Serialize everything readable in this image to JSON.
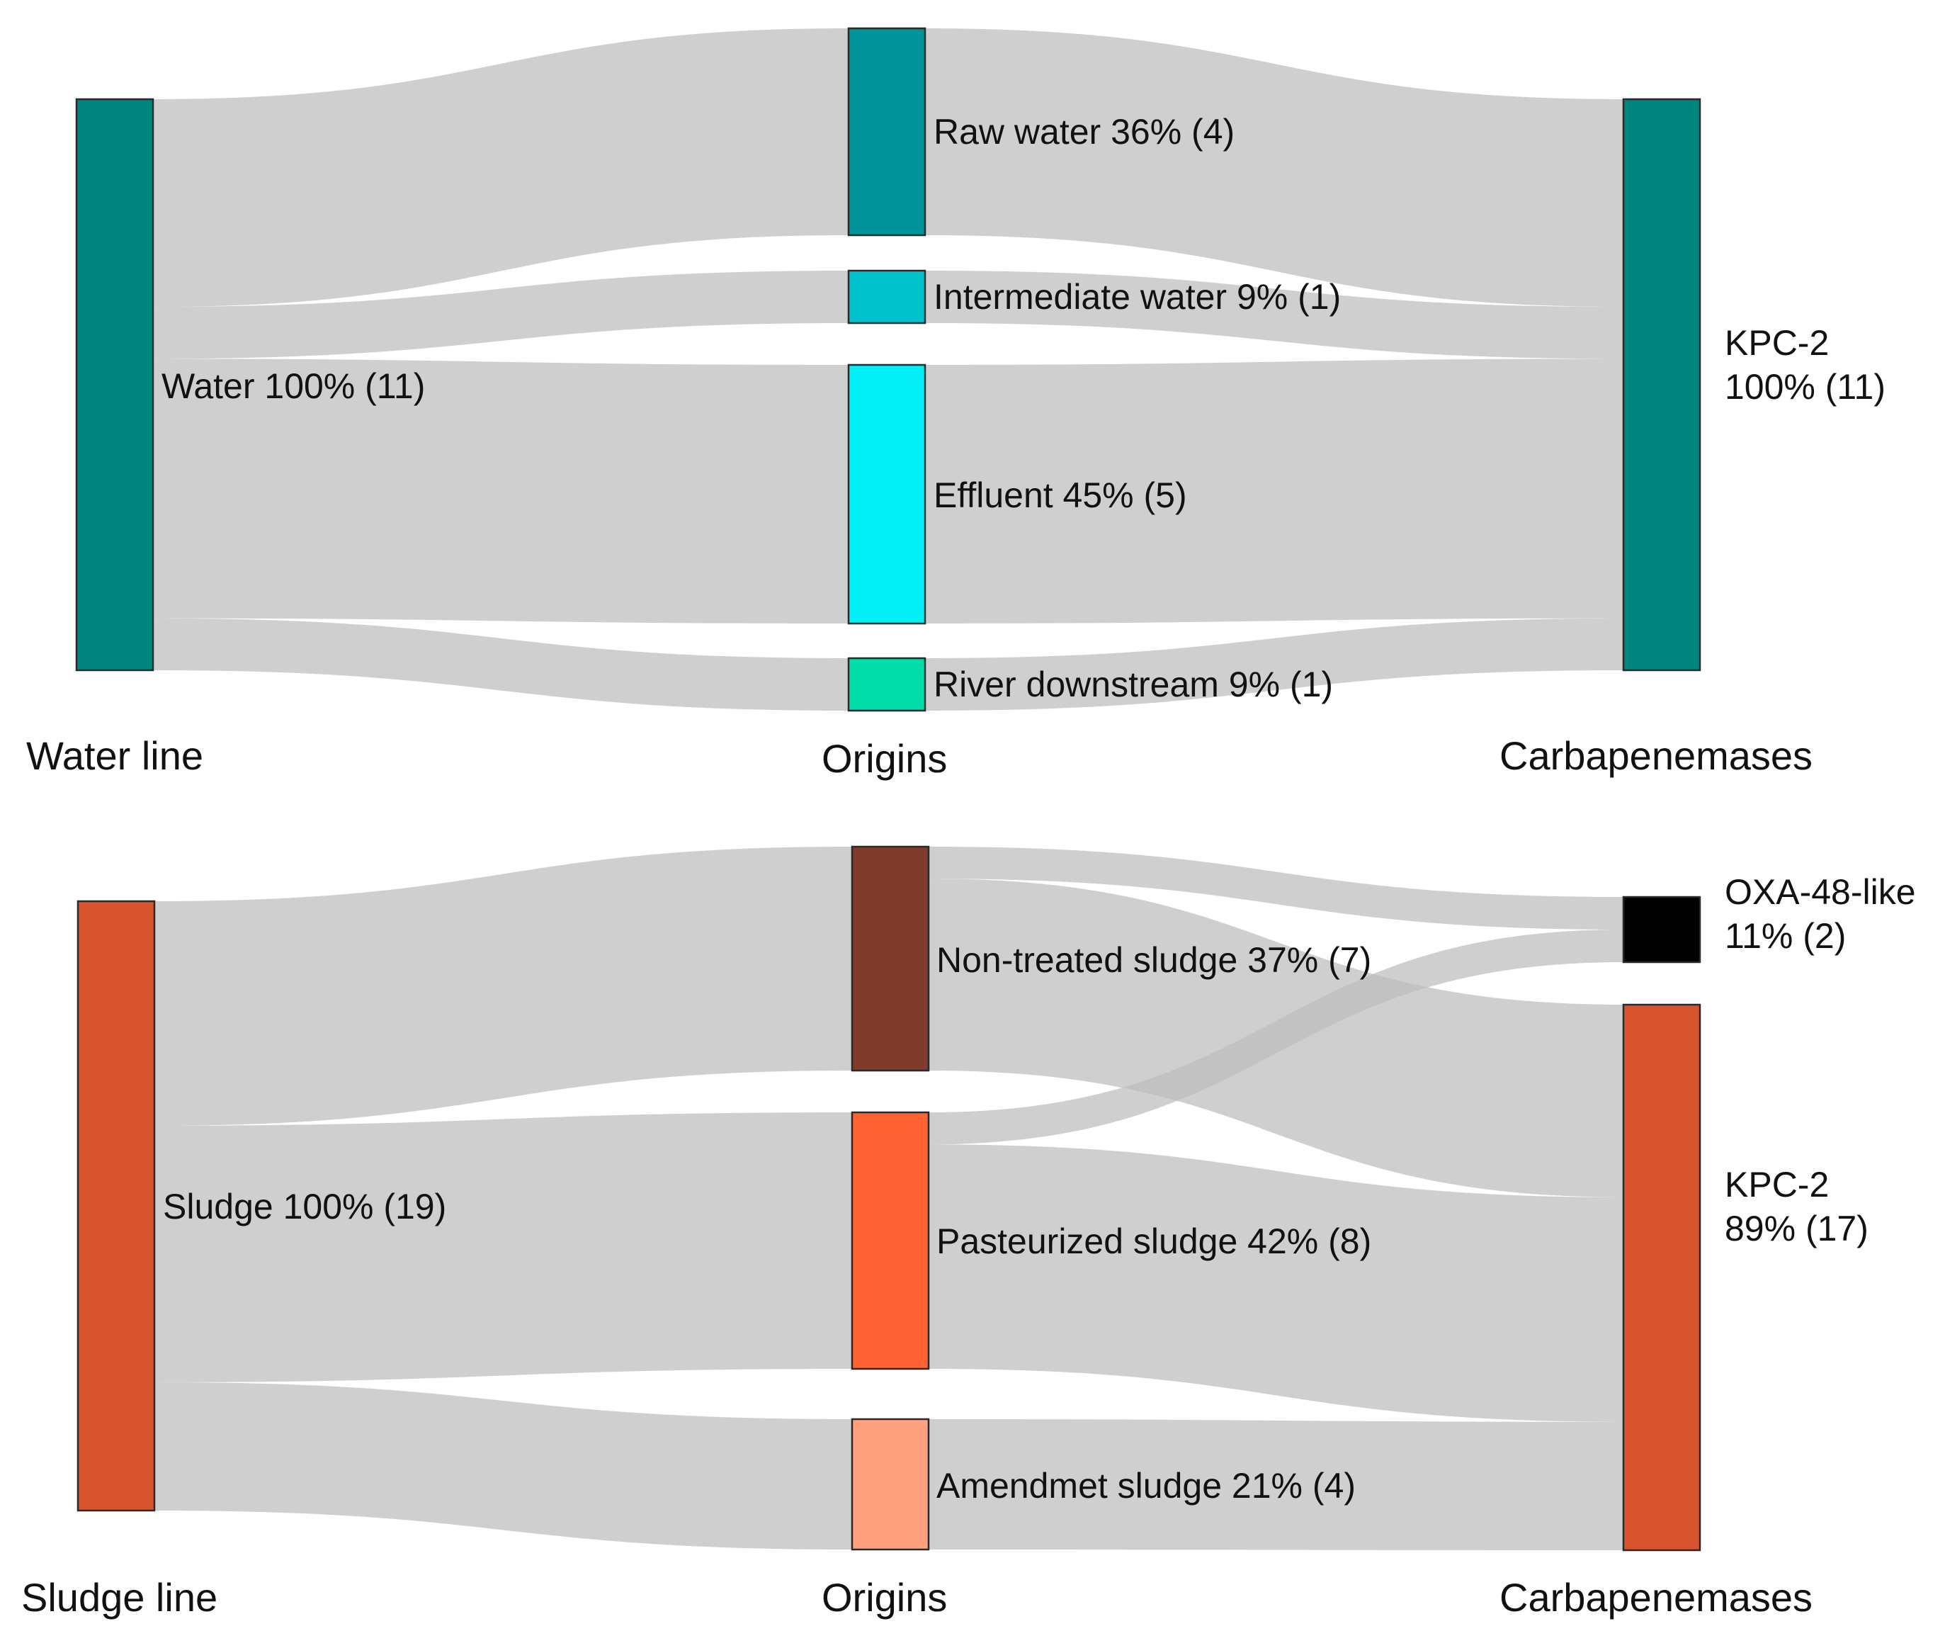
{
  "diagrams": [
    {
      "id": "water",
      "column_headers": [
        "Water line",
        "Origins",
        "Carbapenemases"
      ],
      "nodes": [
        {
          "id": "water_total",
          "lines": [
            "Water 100% (11)"
          ],
          "color": "#00847e",
          "count": 11
        },
        {
          "id": "raw_water",
          "lines": [
            "Raw water 36% (4)"
          ],
          "color": "#00939a",
          "count": 4
        },
        {
          "id": "intermediate_water",
          "lines": [
            "Intermediate water 9% (1)"
          ],
          "color": "#00c2ca",
          "count": 1
        },
        {
          "id": "effluent",
          "lines": [
            "Effluent 45% (5)"
          ],
          "color": "#00f0f6",
          "count": 5
        },
        {
          "id": "river_downstream",
          "lines": [
            "River downstream 9% (1)"
          ],
          "color": "#00dcaa",
          "count": 1
        },
        {
          "id": "kpc2_water",
          "lines": [
            "KPC-2",
            "100% (11)"
          ],
          "color": "#00847e",
          "count": 11
        }
      ],
      "links": [
        {
          "source": "water_total",
          "target": "raw_water",
          "value": 4
        },
        {
          "source": "water_total",
          "target": "intermediate_water",
          "value": 1
        },
        {
          "source": "water_total",
          "target": "effluent",
          "value": 5
        },
        {
          "source": "water_total",
          "target": "river_downstream",
          "value": 1
        },
        {
          "source": "raw_water",
          "target": "kpc2_water",
          "value": 4
        },
        {
          "source": "intermediate_water",
          "target": "kpc2_water",
          "value": 1
        },
        {
          "source": "effluent",
          "target": "kpc2_water",
          "value": 5
        },
        {
          "source": "river_downstream",
          "target": "kpc2_water",
          "value": 1
        }
      ]
    },
    {
      "id": "sludge",
      "column_headers": [
        "Sludge line",
        "Origins",
        "Carbapenemases"
      ],
      "nodes": [
        {
          "id": "sludge_total",
          "lines": [
            "Sludge 100% (19)"
          ],
          "color": "#d8542e",
          "count": 19
        },
        {
          "id": "non_treated_sludge",
          "lines": [
            "Non-treated sludge 37% (7)"
          ],
          "color": "#7f3b2c",
          "count": 7
        },
        {
          "id": "pasteurized_sludge",
          "lines": [
            "Pasteurized sludge 42% (8)"
          ],
          "color": "#ff6233",
          "count": 8
        },
        {
          "id": "amendmet_sludge",
          "lines": [
            "Amendmet sludge 21% (4)"
          ],
          "color": "#ffa07e",
          "count": 4
        },
        {
          "id": "oxa48",
          "lines": [
            "OXA-48-like",
            "11% (2)"
          ],
          "color": "#000000",
          "count": 2
        },
        {
          "id": "kpc2_sludge",
          "lines": [
            "KPC-2",
            "89% (17)"
          ],
          "color": "#d8542e",
          "count": 17
        }
      ],
      "links": [
        {
          "source": "sludge_total",
          "target": "non_treated_sludge",
          "value": 7
        },
        {
          "source": "sludge_total",
          "target": "pasteurized_sludge",
          "value": 8
        },
        {
          "source": "sludge_total",
          "target": "amendmet_sludge",
          "value": 4
        },
        {
          "source": "non_treated_sludge",
          "target": "oxa48",
          "value": 1
        },
        {
          "source": "non_treated_sludge",
          "target": "kpc2_sludge",
          "value": 6
        },
        {
          "source": "pasteurized_sludge",
          "target": "oxa48",
          "value": 1
        },
        {
          "source": "pasteurized_sludge",
          "target": "kpc2_sludge",
          "value": 7
        },
        {
          "source": "amendmet_sludge",
          "target": "kpc2_sludge",
          "value": 4
        }
      ]
    }
  ]
}
